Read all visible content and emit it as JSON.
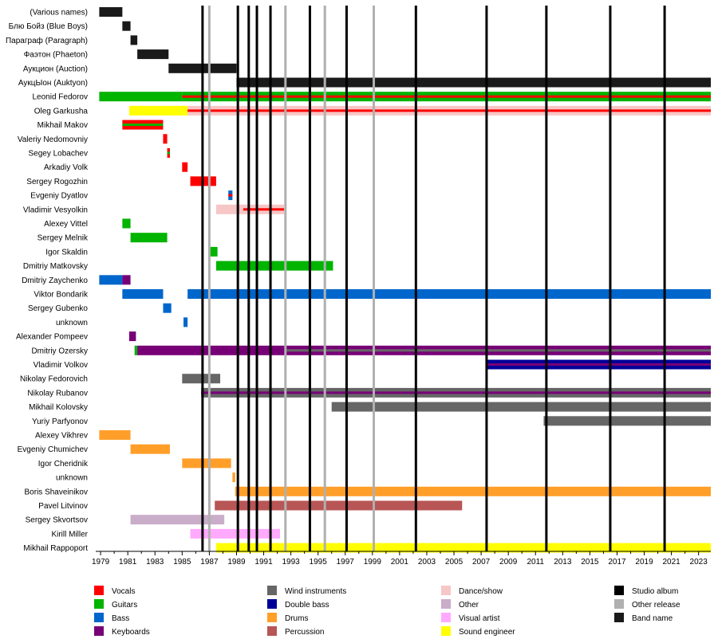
{
  "chart_data": {
    "type": "timeline",
    "x_axis": {
      "range": [
        1978.7,
        2023.9
      ],
      "ticks_major": [
        1979,
        1981,
        1983,
        1985,
        1987,
        1989,
        1991,
        1993,
        1995,
        1997,
        1999,
        2001,
        2003,
        2005,
        2007,
        2009,
        2011,
        2013,
        2015,
        2017,
        2019,
        2021,
        2023
      ]
    },
    "role_colors": {
      "Vocals": "#ff0000",
      "Guitars": "#00b400",
      "Bass": "#0066cc",
      "Keyboards": "#770077",
      "Wind instruments": "#666666",
      "Double bass": "#000099",
      "Drums": "#ff9f2a",
      "Percussion": "#b85555",
      "Dance/show": "#f7c6c6",
      "Other": "#c9adc9",
      "Visual artist": "#ffaaff",
      "Sound engineer": "#ffff00",
      "Studio album": "#000000",
      "Other release": "#b0b0b0",
      "Band name": "#1a1a1a"
    },
    "legend": [
      {
        "label": "Vocals",
        "role": "Vocals"
      },
      {
        "label": "Guitars",
        "role": "Guitars"
      },
      {
        "label": "Bass",
        "role": "Bass"
      },
      {
        "label": "Keyboards",
        "role": "Keyboards"
      },
      {
        "label": "Wind instruments",
        "role": "Wind instruments"
      },
      {
        "label": "Double bass",
        "role": "Double bass"
      },
      {
        "label": "Drums",
        "role": "Drums"
      },
      {
        "label": "Percussion",
        "role": "Percussion"
      },
      {
        "label": "Dance/show",
        "role": "Dance/show"
      },
      {
        "label": "Other",
        "role": "Other"
      },
      {
        "label": "Visual artist",
        "role": "Visual artist"
      },
      {
        "label": "Sound engineer",
        "role": "Sound engineer"
      },
      {
        "label": "Studio album",
        "role": "Studio album"
      },
      {
        "label": "Other release",
        "role": "Other release"
      },
      {
        "label": "Band name",
        "role": "Band name"
      }
    ],
    "studio_albums": [
      1986.5,
      1989.1,
      1989.9,
      1990.5,
      1991.5,
      1994.4,
      1997.1,
      2002.2,
      2007.4,
      2011.8,
      2016.5,
      2020.5
    ],
    "other_releases": [
      1987.0,
      1992.6,
      1995.5,
      1999.1
    ],
    "rows": [
      {
        "name": "(Various names)",
        "bars": [
          {
            "role": "Band name",
            "start": 1978.9,
            "end": 1980.6
          }
        ]
      },
      {
        "name": "Блю Бойз (Blue Boys)",
        "bars": [
          {
            "role": "Band name",
            "start": 1980.6,
            "end": 1981.2
          }
        ]
      },
      {
        "name": "Параграф (Paragraph)",
        "bars": [
          {
            "role": "Band name",
            "start": 1981.2,
            "end": 1981.7
          }
        ]
      },
      {
        "name": "Фаэтон (Phaeton)",
        "bars": [
          {
            "role": "Band name",
            "start": 1981.7,
            "end": 1984.0
          }
        ]
      },
      {
        "name": "Аукцион (Auction)",
        "bars": [
          {
            "role": "Band name",
            "start": 1984.0,
            "end": 1989.0
          }
        ]
      },
      {
        "name": "АукцЫон (Auktyon)",
        "bars": [
          {
            "role": "Band name",
            "start": 1989.0,
            "end": 2023.9
          }
        ]
      },
      {
        "name": "Leonid Fedorov",
        "bars": [
          {
            "role": "Guitars",
            "start": 1978.9,
            "end": 1985.0
          },
          {
            "role": "Guitars",
            "start": 1985.0,
            "end": 2023.9,
            "stripe": "Vocals"
          }
        ]
      },
      {
        "name": "Oleg Garkusha",
        "bars": [
          {
            "role": "Sound engineer",
            "start": 1981.1,
            "end": 1985.4
          },
          {
            "role": "Dance/show",
            "start": 1985.4,
            "end": 2023.9,
            "stripe": "Vocals"
          }
        ]
      },
      {
        "name": "Mikhail Makov",
        "bars": [
          {
            "role": "Vocals",
            "start": 1980.6,
            "end": 1983.6,
            "stripe": "Guitars"
          }
        ]
      },
      {
        "name": "Valeriy Nedomovniy",
        "bars": [
          {
            "role": "Vocals",
            "start": 1983.6,
            "end": 1983.9
          }
        ]
      },
      {
        "name": "Segey Lobachev",
        "bars": [
          {
            "role": "Vocals",
            "start": 1983.9,
            "end": 1984.1,
            "stripe": "Guitars"
          }
        ]
      },
      {
        "name": "Arkadiy Volk",
        "bars": [
          {
            "role": "Vocals",
            "start": 1985.0,
            "end": 1985.4
          }
        ]
      },
      {
        "name": "Sergey Rogozhin",
        "bars": [
          {
            "role": "Vocals",
            "start": 1985.6,
            "end": 1987.5
          }
        ]
      },
      {
        "name": "Evgeniy Dyatlov",
        "bars": [
          {
            "role": "Bass",
            "start": 1988.4,
            "end": 1988.7,
            "stripe": "Vocals"
          }
        ]
      },
      {
        "name": "Vladimir Vesyolkin",
        "bars": [
          {
            "role": "Dance/show",
            "start": 1987.5,
            "end": 1989.5
          },
          {
            "role": "Dance/show",
            "start": 1989.5,
            "end": 1992.5,
            "stripe": "Vocals"
          }
        ]
      },
      {
        "name": "Alexey Vittel",
        "bars": [
          {
            "role": "Guitars",
            "start": 1980.6,
            "end": 1981.2
          }
        ]
      },
      {
        "name": "Sergey Melnik",
        "bars": [
          {
            "role": "Guitars",
            "start": 1981.2,
            "end": 1983.9
          }
        ]
      },
      {
        "name": "Igor Skaldin",
        "bars": [
          {
            "role": "Guitars",
            "start": 1987.0,
            "end": 1987.6
          }
        ]
      },
      {
        "name": "Dmitriy Matkovsky",
        "bars": [
          {
            "role": "Guitars",
            "start": 1987.5,
            "end": 1996.1
          }
        ]
      },
      {
        "name": "Dmitriy Zaychenko",
        "bars": [
          {
            "role": "Bass",
            "start": 1978.9,
            "end": 1980.6
          },
          {
            "role": "Keyboards",
            "start": 1980.6,
            "end": 1981.2
          }
        ]
      },
      {
        "name": "Viktor Bondarik",
        "bars": [
          {
            "role": "Bass",
            "start": 1980.6,
            "end": 1983.6
          },
          {
            "role": "Bass",
            "start": 1985.4,
            "end": 2023.9
          }
        ]
      },
      {
        "name": "Sergey Gubenko",
        "bars": [
          {
            "role": "Bass",
            "start": 1983.6,
            "end": 1984.2
          }
        ]
      },
      {
        "name": "unknown",
        "bars": [
          {
            "role": "Bass",
            "start": 1985.1,
            "end": 1985.4
          }
        ]
      },
      {
        "name": "Alexander Pompeev",
        "bars": [
          {
            "role": "Keyboards",
            "start": 1981.1,
            "end": 1981.6
          }
        ]
      },
      {
        "name": "Dmitriy Ozersky",
        "bars": [
          {
            "role": "Guitars",
            "start": 1981.5,
            "end": 1981.7
          },
          {
            "role": "Keyboards",
            "start": 1981.7,
            "end": 1992.6
          },
          {
            "role": "Keyboards",
            "start": 1992.6,
            "end": 2023.9,
            "stripe": "Wind instruments"
          }
        ]
      },
      {
        "name": "Vladimir Volkov",
        "bars": [
          {
            "role": "Double bass",
            "start": 2007.4,
            "end": 2023.9,
            "stripe": "Keyboards"
          }
        ]
      },
      {
        "name": "Nikolay Fedorovich",
        "bars": [
          {
            "role": "Wind instruments",
            "start": 1985.0,
            "end": 1987.8
          }
        ]
      },
      {
        "name": "Nikolay Rubanov",
        "bars": [
          {
            "role": "Wind instruments",
            "start": 1986.4,
            "end": 2023.9,
            "stripe": "Keyboards"
          }
        ]
      },
      {
        "name": "Mikhail Kolovsky",
        "bars": [
          {
            "role": "Wind instruments",
            "start": 1996.0,
            "end": 2023.9
          }
        ]
      },
      {
        "name": "Yuriy Parfyonov",
        "bars": [
          {
            "role": "Wind instruments",
            "start": 2011.6,
            "end": 2023.9
          }
        ]
      },
      {
        "name": "Alexey Vikhrev",
        "bars": [
          {
            "role": "Drums",
            "start": 1978.9,
            "end": 1981.2
          }
        ]
      },
      {
        "name": "Evgeniy Chumichev",
        "bars": [
          {
            "role": "Drums",
            "start": 1981.2,
            "end": 1984.1
          }
        ]
      },
      {
        "name": "Igor Cheridnik",
        "bars": [
          {
            "role": "Drums",
            "start": 1985.0,
            "end": 1988.6
          }
        ]
      },
      {
        "name": "unknown",
        "bars": [
          {
            "role": "Drums",
            "start": 1988.7,
            "end": 1988.9
          }
        ]
      },
      {
        "name": "Boris Shaveinikov",
        "bars": [
          {
            "role": "Drums",
            "start": 1988.9,
            "end": 2023.9
          }
        ]
      },
      {
        "name": "Pavel Litvinov",
        "bars": [
          {
            "role": "Percussion",
            "start": 1987.4,
            "end": 2005.6
          }
        ]
      },
      {
        "name": "Sergey Skvortsov",
        "bars": [
          {
            "role": "Other",
            "start": 1981.2,
            "end": 1988.1
          }
        ]
      },
      {
        "name": "Kirill Miller",
        "bars": [
          {
            "role": "Visual artist",
            "start": 1985.6,
            "end": 1992.2
          }
        ]
      },
      {
        "name": "Mikhail Rappoport",
        "bars": [
          {
            "role": "Sound engineer",
            "start": 1987.5,
            "end": 2023.9
          }
        ]
      }
    ]
  }
}
